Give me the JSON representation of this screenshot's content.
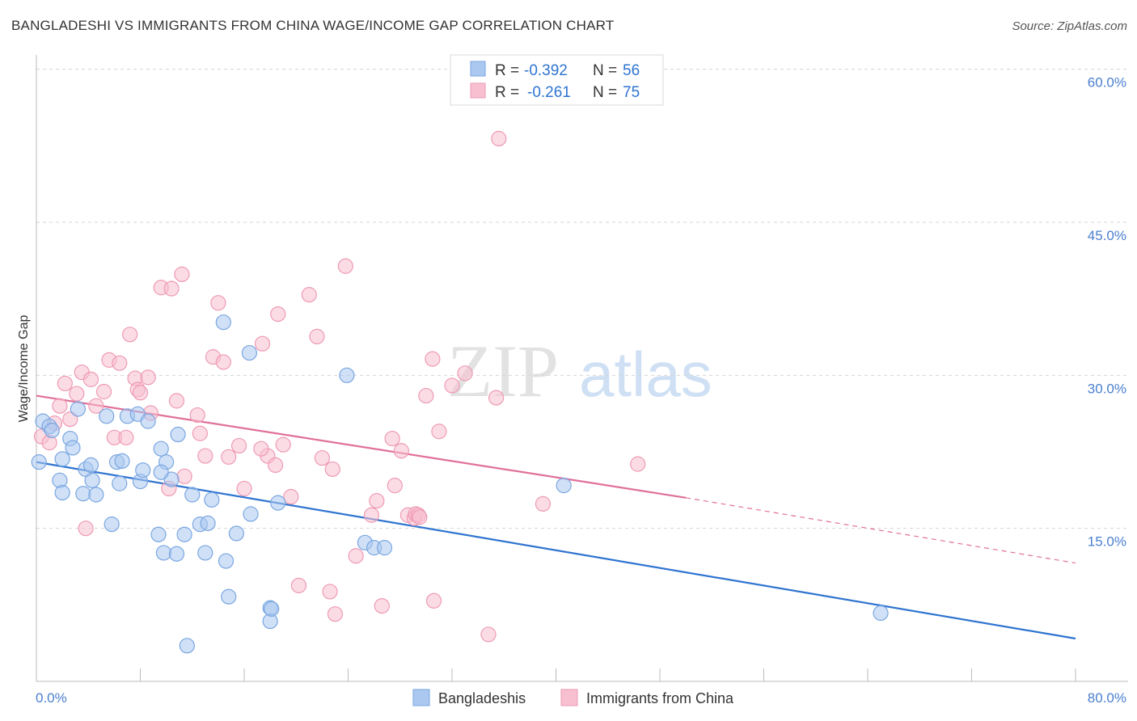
{
  "header": {
    "title": "BANGLADESHI VS IMMIGRANTS FROM CHINA WAGE/INCOME GAP CORRELATION CHART",
    "source": "Source: ZipAtlas.com"
  },
  "watermark": {
    "zip": "ZIP",
    "atlas": "atlas"
  },
  "legend_box": {
    "row1": {
      "r_label": "R = ",
      "r_value": "-0.392",
      "n_label": "N = ",
      "n_value": "56"
    },
    "row2": {
      "r_label": "R = ",
      "r_value": "-0.261",
      "n_label": "N = ",
      "n_value": "75"
    }
  },
  "bottom_legend": {
    "series1": "Bangladeshis",
    "series2": "Immigrants from China"
  },
  "chart_data": {
    "type": "scatter",
    "title": "BANGLADESHI VS IMMIGRANTS FROM CHINA WAGE/INCOME GAP CORRELATION CHART",
    "xlabel": "",
    "ylabel": "Wage/Income Gap",
    "xlim": [
      0,
      80
    ],
    "ylim": [
      0,
      60
    ],
    "x_tick_labels": [
      "0.0%",
      "80.0%"
    ],
    "y_ticks": [
      15,
      30,
      45,
      60
    ],
    "y_tick_labels": [
      "15.0%",
      "30.0%",
      "45.0%",
      "60.0%"
    ],
    "grid": true,
    "legend_position": "top-center",
    "colors": {
      "bangladeshi_fill": "#aac8f0",
      "bangladeshi_stroke": "#7aa6e0",
      "bangladeshi_line": "#2f74d0",
      "china_fill": "#f7bfd0",
      "china_stroke": "#ee9ab4",
      "china_line": "#e0709a",
      "axis_text": "#4a7fcf"
    },
    "series": [
      {
        "name": "Bangladeshis",
        "r": -0.392,
        "n": 56,
        "trend": {
          "x0": 0,
          "y0": 21.5,
          "x1": 80,
          "y1": 4.2
        },
        "points": [
          [
            0.2,
            21.5
          ],
          [
            0.5,
            25.5
          ],
          [
            1.0,
            25.0
          ],
          [
            1.2,
            24.6
          ],
          [
            2.0,
            21.8
          ],
          [
            1.8,
            19.7
          ],
          [
            2.0,
            18.5
          ],
          [
            2.6,
            23.8
          ],
          [
            2.8,
            22.9
          ],
          [
            3.2,
            26.7
          ],
          [
            3.6,
            18.4
          ],
          [
            3.8,
            20.8
          ],
          [
            4.2,
            21.2
          ],
          [
            4.3,
            19.7
          ],
          [
            4.6,
            18.3
          ],
          [
            5.4,
            26.0
          ],
          [
            5.8,
            15.4
          ],
          [
            6.2,
            21.5
          ],
          [
            6.4,
            19.4
          ],
          [
            6.6,
            21.6
          ],
          [
            7.0,
            26.0
          ],
          [
            7.8,
            26.2
          ],
          [
            8.0,
            19.6
          ],
          [
            8.2,
            20.7
          ],
          [
            8.6,
            25.5
          ],
          [
            9.4,
            14.4
          ],
          [
            9.6,
            22.8
          ],
          [
            9.8,
            12.6
          ],
          [
            10.0,
            21.5
          ],
          [
            10.4,
            19.8
          ],
          [
            10.8,
            12.5
          ],
          [
            10.9,
            24.2
          ],
          [
            11.4,
            14.4
          ],
          [
            12.0,
            18.3
          ],
          [
            12.6,
            15.4
          ],
          [
            13.0,
            12.6
          ],
          [
            13.2,
            15.5
          ],
          [
            13.5,
            17.8
          ],
          [
            14.4,
            35.2
          ],
          [
            14.6,
            11.8
          ],
          [
            14.8,
            8.3
          ],
          [
            15.4,
            14.5
          ],
          [
            16.4,
            32.2
          ],
          [
            16.5,
            16.4
          ],
          [
            18.0,
            7.2
          ],
          [
            18.0,
            5.9
          ],
          [
            18.6,
            17.5
          ],
          [
            23.9,
            30.0
          ],
          [
            25.3,
            13.6
          ],
          [
            26.0,
            13.1
          ],
          [
            26.8,
            13.1
          ],
          [
            40.6,
            19.2
          ],
          [
            65.0,
            6.7
          ],
          [
            18.1,
            7.1
          ],
          [
            9.6,
            20.5
          ],
          [
            11.6,
            3.5
          ]
        ]
      },
      {
        "name": "Immigrants from China",
        "r": -0.261,
        "n": 75,
        "trend": {
          "x0": 0,
          "y0": 28.0,
          "x1": 50,
          "y1": 18.0,
          "dash_to_x": 80,
          "dash_to_y": 11.6
        },
        "points": [
          [
            0.4,
            24.0
          ],
          [
            1.0,
            23.4
          ],
          [
            1.4,
            25.3
          ],
          [
            1.8,
            27.0
          ],
          [
            2.2,
            29.2
          ],
          [
            2.6,
            25.7
          ],
          [
            3.1,
            28.2
          ],
          [
            3.5,
            30.3
          ],
          [
            3.8,
            15.0
          ],
          [
            4.2,
            29.6
          ],
          [
            4.6,
            27.0
          ],
          [
            5.2,
            28.4
          ],
          [
            5.6,
            31.5
          ],
          [
            6.0,
            23.9
          ],
          [
            6.4,
            31.2
          ],
          [
            7.2,
            34.0
          ],
          [
            7.6,
            29.7
          ],
          [
            7.8,
            28.6
          ],
          [
            8.0,
            28.3
          ],
          [
            8.6,
            29.8
          ],
          [
            8.8,
            26.3
          ],
          [
            9.6,
            38.6
          ],
          [
            10.2,
            18.9
          ],
          [
            10.4,
            38.5
          ],
          [
            10.8,
            27.5
          ],
          [
            11.2,
            39.9
          ],
          [
            11.4,
            20.1
          ],
          [
            12.4,
            26.1
          ],
          [
            12.6,
            24.3
          ],
          [
            13.0,
            22.1
          ],
          [
            13.6,
            31.8
          ],
          [
            14.0,
            37.1
          ],
          [
            14.4,
            31.3
          ],
          [
            14.8,
            22.0
          ],
          [
            15.6,
            23.1
          ],
          [
            16.0,
            18.9
          ],
          [
            17.4,
            33.1
          ],
          [
            17.8,
            22.1
          ],
          [
            18.4,
            21.2
          ],
          [
            18.6,
            36.0
          ],
          [
            19.0,
            23.2
          ],
          [
            19.6,
            18.1
          ],
          [
            20.2,
            9.4
          ],
          [
            21.0,
            37.9
          ],
          [
            21.6,
            33.8
          ],
          [
            22.0,
            21.9
          ],
          [
            22.6,
            8.8
          ],
          [
            22.8,
            20.8
          ],
          [
            23.0,
            6.6
          ],
          [
            23.8,
            40.7
          ],
          [
            24.6,
            12.3
          ],
          [
            25.8,
            16.3
          ],
          [
            26.2,
            17.7
          ],
          [
            26.6,
            7.4
          ],
          [
            27.4,
            23.8
          ],
          [
            28.1,
            22.6
          ],
          [
            28.6,
            16.3
          ],
          [
            29.1,
            16.0
          ],
          [
            29.2,
            16.4
          ],
          [
            29.4,
            16.3
          ],
          [
            29.5,
            16.1
          ],
          [
            30.0,
            28.0
          ],
          [
            30.6,
            7.9
          ],
          [
            31.0,
            24.5
          ],
          [
            32.0,
            29.0
          ],
          [
            33.0,
            30.2
          ],
          [
            34.8,
            4.6
          ],
          [
            35.4,
            27.8
          ],
          [
            39.0,
            17.4
          ],
          [
            46.3,
            21.3
          ],
          [
            30.5,
            31.6
          ],
          [
            35.6,
            53.2
          ],
          [
            17.3,
            22.8
          ],
          [
            6.9,
            23.9
          ],
          [
            27.6,
            19.2
          ]
        ]
      }
    ]
  }
}
